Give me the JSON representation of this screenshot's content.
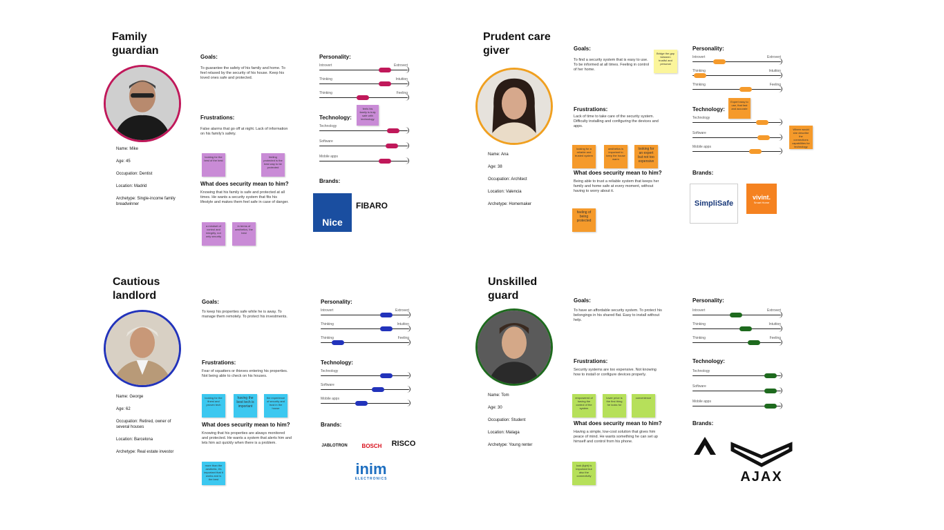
{
  "personas": [
    {
      "key": "family",
      "title": "Family guardian",
      "accent": "#c0185a",
      "info": {
        "name": "Name: Mike",
        "age": "Age: 45",
        "occupation": "Occupation: Dentist",
        "location": "Location: Madrid",
        "archetype": "Archetype: Single-income family breadwinner"
      },
      "goals_h": "Goals:",
      "goals_text": "To guarantee the safety of his family and home. To feel relaxed by the security of his house. Keep his loved ones safe and protected.",
      "frustrations_h": "Frustrations:",
      "frustrations_text": "False alarms that go off at night. Lack of information on his family's safety.",
      "security_h": "What does security mean to him?",
      "security_text": "Knowing that his family is safe and protected at all times. He wants a security system that fits his lifestyle and makes them feel safe in case of danger.",
      "personality_h": "Personality:",
      "technology_h": "Technology:",
      "brands_h": "Brands:",
      "traits": [
        [
          "Introvert",
          "Extrovert"
        ],
        [
          "Thinking",
          "Intuition"
        ],
        [
          "Thinking",
          "Feeling"
        ]
      ],
      "tech": [
        "Technology",
        "Software",
        "Mobile apps"
      ],
      "stickies": [
        "looking for the best of the best",
        "feeling protected is the best way to be protected",
        "a mindset of control and integrity, not only security",
        "in terms of aesthetics, the best"
      ],
      "p_sticky": "feels his family is truly safe with technology"
    },
    {
      "key": "prudent",
      "title": "Prudent care giver",
      "accent": "#f0a020",
      "info": {
        "name": "Name: Ana",
        "age": "Age: 38",
        "occupation": "Occupation: Architect",
        "location": "Location: Valencia",
        "archetype": "Archetype: Homemaker"
      },
      "goals_h": "Goals:",
      "goals_text": "To find a security system that is easy to use. To be informed at all times. Feeling in control of her home.",
      "frustrations_h": "Frustrations:",
      "frustrations_text": "Lack of time to take care of the security system. Difficulty installing and configuring the devices and apps.",
      "security_h": "What does security mean to him?",
      "security_text": "Being able to trust a reliable system that keeps her family and home safe at every moment, without having to worry about it.",
      "personality_h": "Personality:",
      "technology_h": "Technology:",
      "brands_h": "Brands:",
      "traits": [
        [
          "Introvert",
          "Extrovert"
        ],
        [
          "Thinking",
          "Intuition"
        ],
        [
          "Thinking",
          "Feeling"
        ]
      ],
      "tech": [
        "Technology",
        "Software",
        "Mobile apps"
      ],
      "stickies": [
        "looking for a reliable and trusted system",
        "aesthetics is important to keep the house warm",
        "looking for an expert but not too expensive",
        "feeling of being protected"
      ],
      "yellow_sticky": "Bridge the gap between trustful and personal",
      "p_sticky": "Expert easy to use, that fast and accurate",
      "t_sticky": "Where would she describe the connections capabilities for technology"
    },
    {
      "key": "cautious",
      "title": "Cautious landlord",
      "accent": "#2233bb",
      "info": {
        "name": "Name: George",
        "age": "Age: 62",
        "occupation": "Occupation: Retired, owner of several houses",
        "location": "Location: Barcelona",
        "archetype": "Archetype: Real estate investor"
      },
      "goals_h": "Goals:",
      "goals_text": "To keep his properties safe while he is away. To manage them remotely. To protect his investments.",
      "frustrations_h": "Frustrations:",
      "frustrations_text": "Fear of squatters or thieves entering his properties. Not being able to check on his houses.",
      "security_h": "What does security mean to him?",
      "security_text": "Knowing that his properties are always monitored and protected. He wants a system that alerts him and lets him act quickly when there is a problem.",
      "personality_h": "Personality:",
      "technology_h": "Technology:",
      "brands_h": "Brands:",
      "traits": [
        [
          "Introvert",
          "Extrovert"
        ],
        [
          "Thinking",
          "Intuition"
        ],
        [
          "Thinking",
          "Feeling"
        ]
      ],
      "tech": [
        "Technology",
        "Software",
        "Mobile apps"
      ],
      "stickies": [
        "looking for the finest and proven tech",
        "having the best tech is important",
        "the experience of security and trust in the house",
        "more than the aesthetic, it's important that it works and is the best"
      ],
      "brand_names": {
        "jablotron": "JABLOTRON",
        "bosch": "BOSCH",
        "risco": "RISCO",
        "inim": "inim",
        "inim_sub": "ELECTRONICS"
      }
    },
    {
      "key": "unskilled",
      "title": "Unskilled guard",
      "accent": "#1e6a1e",
      "info": {
        "name": "Name: Tom",
        "age": "Age: 30",
        "occupation": "Occupation: Student",
        "location": "Location: Malaga",
        "archetype": "Archetype: Young renter"
      },
      "goals_h": "Goals:",
      "goals_text": "To have an affordable security system. To protect his belongings in his shared flat. Easy to install without help.",
      "frustrations_h": "Frustrations:",
      "frustrations_text": "Security systems are too expensive. Not knowing how to install or configure devices properly.",
      "security_h": "What does security mean to him?",
      "security_text": "Having a simple, low-cost solution that gives him peace of mind. He wants something he can set up himself and control from his phone.",
      "personality_h": "Personality:",
      "technology_h": "Technology:",
      "brands_h": "Brands:",
      "traits": [
        [
          "Introvert",
          "Extrovert"
        ],
        [
          "Thinking",
          "Intuition"
        ],
        [
          "Thinking",
          "Feeling"
        ]
      ],
      "tech": [
        "Technology",
        "Software",
        "Mobile apps"
      ],
      "stickies": [
        "empowered of having the control of the system",
        "lower price is the first thing he looks for",
        "convenience",
        "look (light) is important but also the connectivity"
      ],
      "brand_names": {
        "ajax": "AJAX"
      }
    }
  ],
  "brands": {
    "nice": "Nice",
    "fibaro": "FIBARO",
    "simplisafe": "SimpliSafe",
    "vivint": "vivint.",
    "vivint_sub": "Smart Home"
  }
}
